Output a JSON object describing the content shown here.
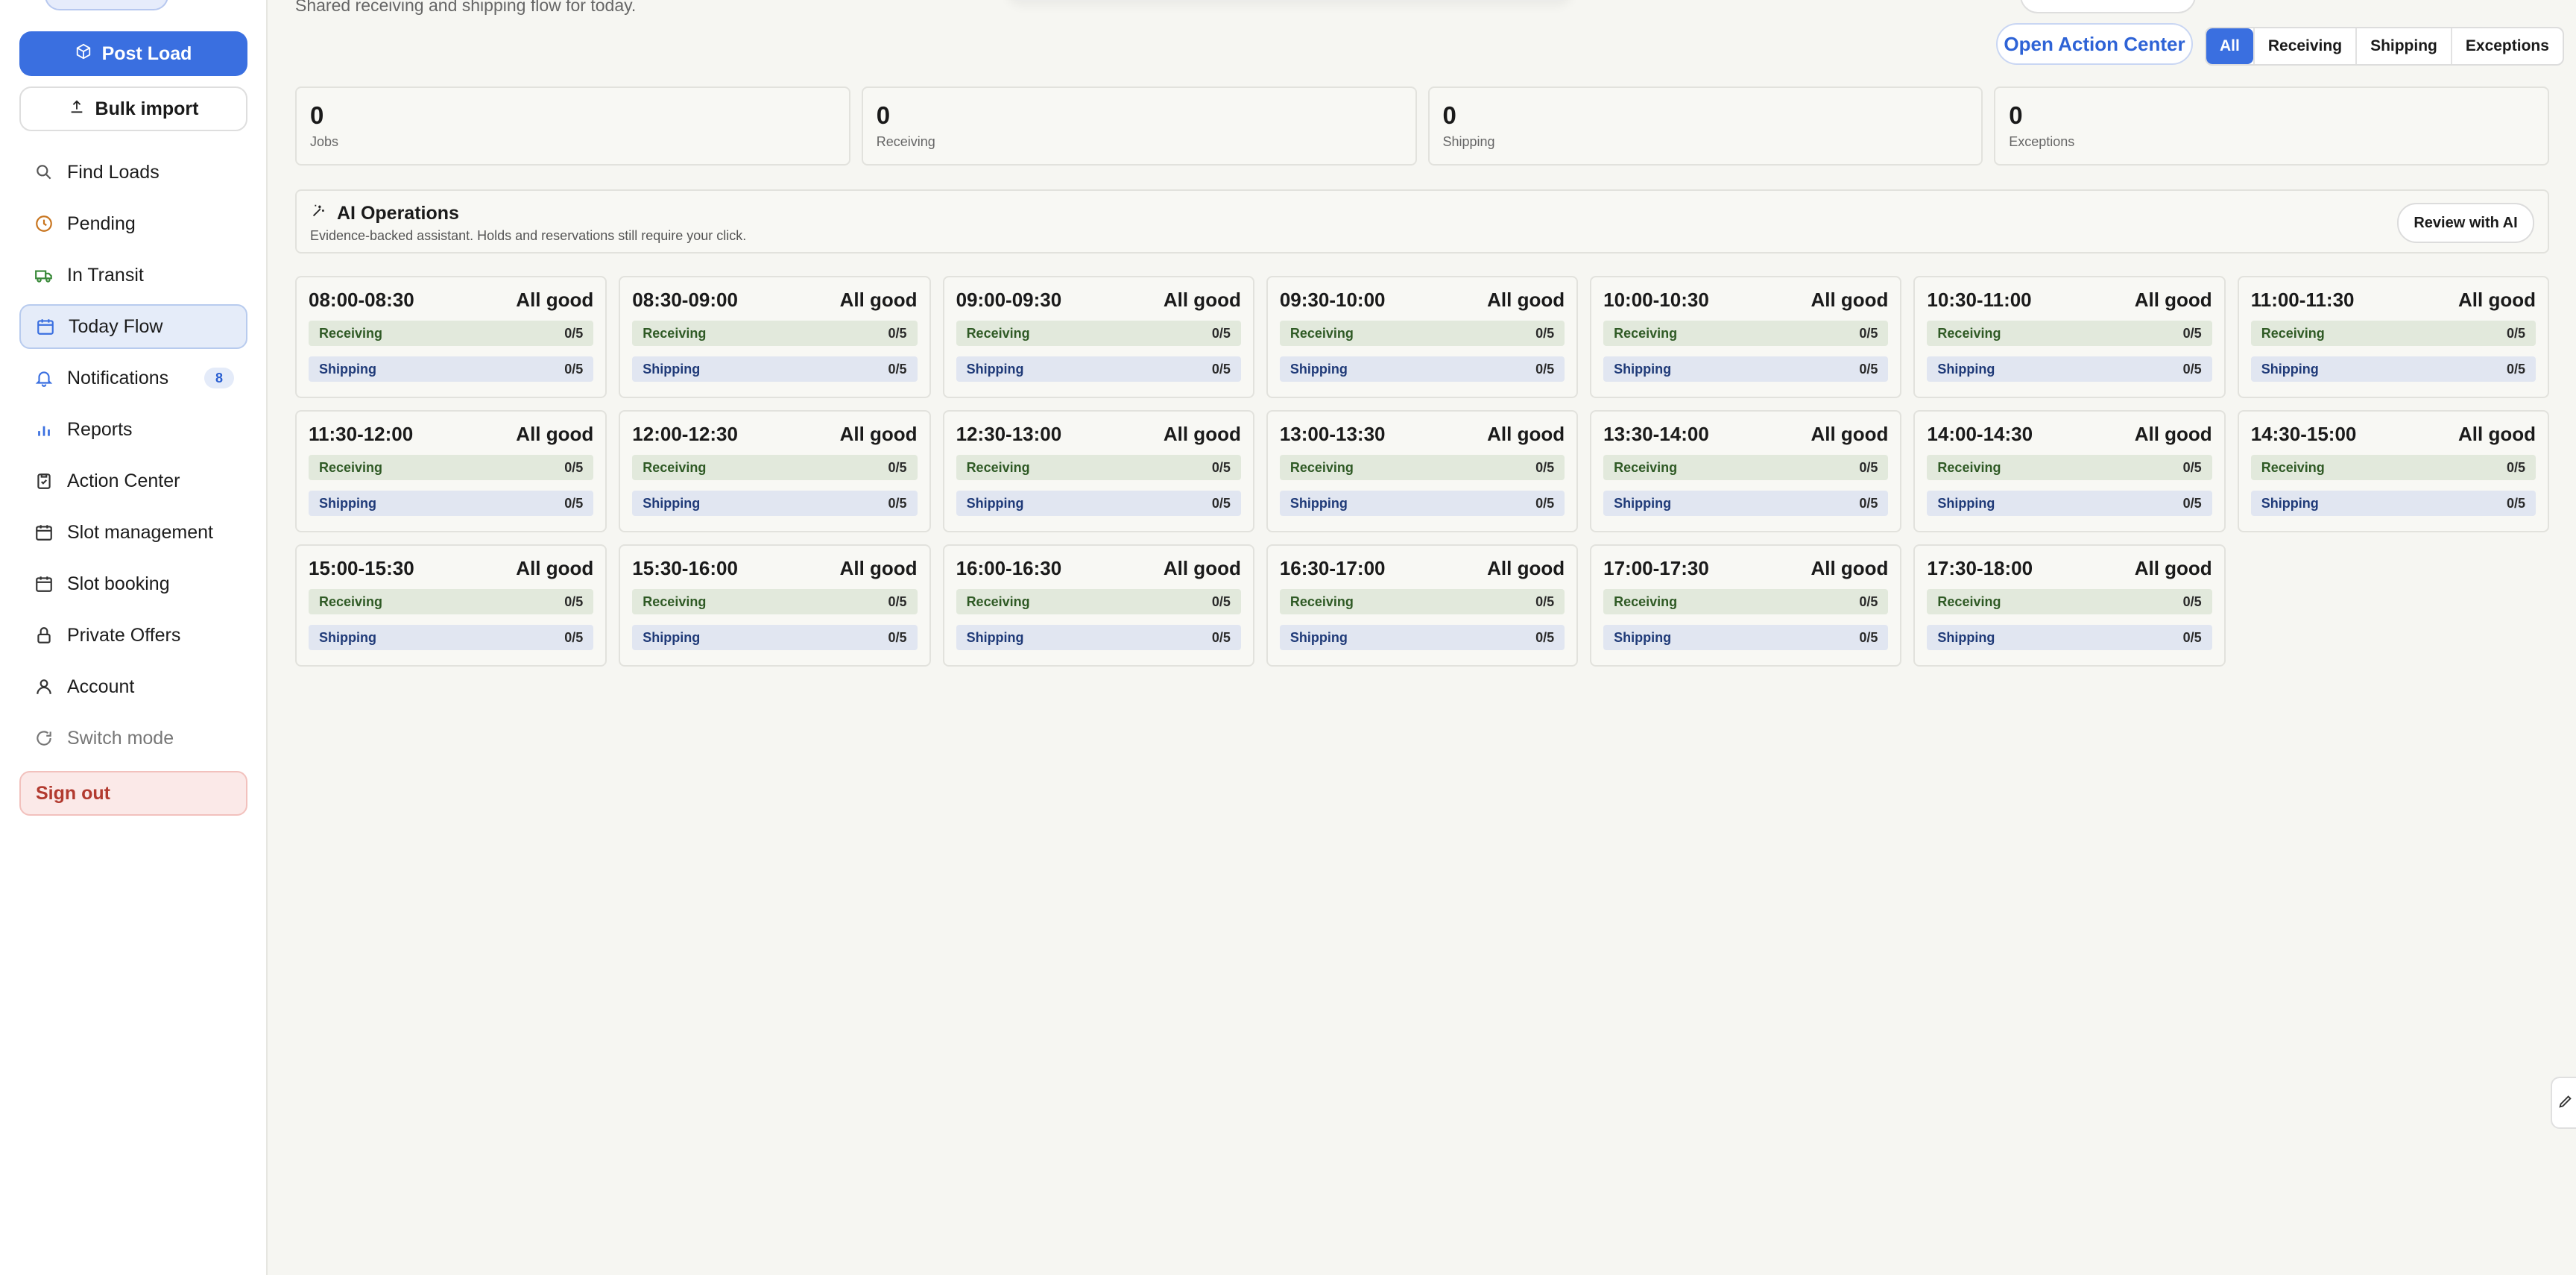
{
  "sidebar": {
    "post_load": "Post Load",
    "bulk_import": "Bulk import",
    "items": [
      {
        "label": "Find Loads",
        "icon": "search-icon"
      },
      {
        "label": "Pending",
        "icon": "clock-icon"
      },
      {
        "label": "In Transit",
        "icon": "truck-icon"
      },
      {
        "label": "Today Flow",
        "icon": "calendar-icon"
      },
      {
        "label": "Notifications",
        "icon": "bell-icon",
        "badge": "8"
      },
      {
        "label": "Reports",
        "icon": "bar-chart-icon"
      },
      {
        "label": "Action Center",
        "icon": "clipboard-icon"
      },
      {
        "label": "Slot management",
        "icon": "calendar-icon"
      },
      {
        "label": "Slot booking",
        "icon": "calendar-icon"
      },
      {
        "label": "Private Offers",
        "icon": "lock-icon"
      },
      {
        "label": "Account",
        "icon": "user-icon"
      },
      {
        "label": "Switch mode",
        "icon": "refresh-icon"
      }
    ],
    "sign_out": "Sign out"
  },
  "header": {
    "subtitle": "Shared receiving and shipping flow for today.",
    "open_action_center": "Open Action Center",
    "filters": [
      "All",
      "Receiving",
      "Shipping",
      "Exceptions"
    ],
    "active_filter": "All"
  },
  "stats": [
    {
      "value": "0",
      "label": "Jobs"
    },
    {
      "value": "0",
      "label": "Receiving"
    },
    {
      "value": "0",
      "label": "Shipping"
    },
    {
      "value": "0",
      "label": "Exceptions"
    }
  ],
  "ai": {
    "title": "AI Operations",
    "description": "Evidence-backed assistant. Holds and reservations still require your click.",
    "review_button": "Review with AI"
  },
  "slot_labels": {
    "receiving": "Receiving",
    "shipping": "Shipping"
  },
  "slots": [
    {
      "time": "08:00-08:30",
      "status": "All good",
      "receiving": "0/5",
      "shipping": "0/5"
    },
    {
      "time": "08:30-09:00",
      "status": "All good",
      "receiving": "0/5",
      "shipping": "0/5"
    },
    {
      "time": "09:00-09:30",
      "status": "All good",
      "receiving": "0/5",
      "shipping": "0/5"
    },
    {
      "time": "09:30-10:00",
      "status": "All good",
      "receiving": "0/5",
      "shipping": "0/5"
    },
    {
      "time": "10:00-10:30",
      "status": "All good",
      "receiving": "0/5",
      "shipping": "0/5"
    },
    {
      "time": "10:30-11:00",
      "status": "All good",
      "receiving": "0/5",
      "shipping": "0/5"
    },
    {
      "time": "11:00-11:30",
      "status": "All good",
      "receiving": "0/5",
      "shipping": "0/5"
    },
    {
      "time": "11:30-12:00",
      "status": "All good",
      "receiving": "0/5",
      "shipping": "0/5"
    },
    {
      "time": "12:00-12:30",
      "status": "All good",
      "receiving": "0/5",
      "shipping": "0/5"
    },
    {
      "time": "12:30-13:00",
      "status": "All good",
      "receiving": "0/5",
      "shipping": "0/5"
    },
    {
      "time": "13:00-13:30",
      "status": "All good",
      "receiving": "0/5",
      "shipping": "0/5"
    },
    {
      "time": "13:30-14:00",
      "status": "All good",
      "receiving": "0/5",
      "shipping": "0/5"
    },
    {
      "time": "14:00-14:30",
      "status": "All good",
      "receiving": "0/5",
      "shipping": "0/5"
    },
    {
      "time": "14:30-15:00",
      "status": "All good",
      "receiving": "0/5",
      "shipping": "0/5"
    },
    {
      "time": "15:00-15:30",
      "status": "All good",
      "receiving": "0/5",
      "shipping": "0/5"
    },
    {
      "time": "15:30-16:00",
      "status": "All good",
      "receiving": "0/5",
      "shipping": "0/5"
    },
    {
      "time": "16:00-16:30",
      "status": "All good",
      "receiving": "0/5",
      "shipping": "0/5"
    },
    {
      "time": "16:30-17:00",
      "status": "All good",
      "receiving": "0/5",
      "shipping": "0/5"
    },
    {
      "time": "17:00-17:30",
      "status": "All good",
      "receiving": "0/5",
      "shipping": "0/5"
    },
    {
      "time": "17:30-18:00",
      "status": "All good",
      "receiving": "0/5",
      "shipping": "0/5"
    }
  ],
  "colors": {
    "accent": "#3a6fe0",
    "danger": "#b23a2f",
    "receiving": "#e2e9dc",
    "shipping": "#e1e6f1"
  }
}
